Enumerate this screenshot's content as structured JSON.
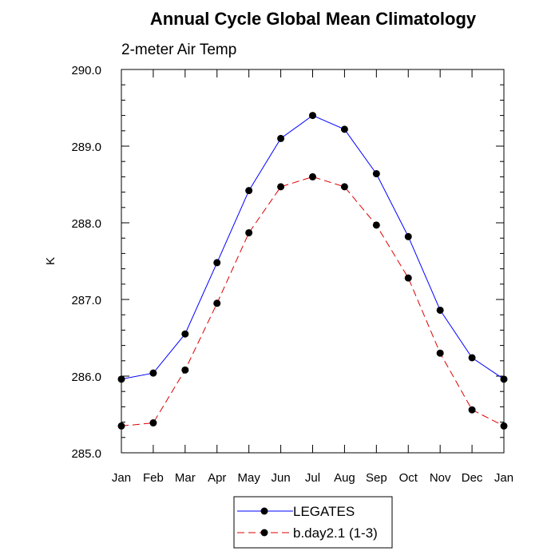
{
  "chart_data": {
    "type": "line",
    "title": "Annual Cycle Global Mean Climatology",
    "subtitle": "2-meter Air Temp",
    "xlabel": "",
    "ylabel": "K",
    "categories": [
      "Jan",
      "Feb",
      "Mar",
      "Apr",
      "May",
      "Jun",
      "Jul",
      "Aug",
      "Sep",
      "Oct",
      "Nov",
      "Dec",
      "Jan"
    ],
    "ylim": [
      285.0,
      290.0
    ],
    "yticks": [
      "285.0",
      "286.0",
      "287.0",
      "288.0",
      "289.0",
      "290.0"
    ],
    "grid": false,
    "legend_position": "bottom-center",
    "series": [
      {
        "name": "LEGATES",
        "color": "#0000ff",
        "line_style": "solid",
        "marker": "filled-circle",
        "values": [
          285.96,
          286.04,
          286.55,
          287.48,
          288.42,
          289.1,
          289.4,
          289.22,
          288.64,
          287.82,
          286.86,
          286.24,
          285.96
        ]
      },
      {
        "name": "b.day2.1 (1-3)",
        "color": "#dd0000",
        "line_style": "dashed",
        "marker": "filled-circle",
        "values": [
          285.35,
          285.39,
          286.08,
          286.95,
          287.87,
          288.47,
          288.6,
          288.47,
          287.97,
          287.28,
          286.3,
          285.56,
          285.35
        ]
      }
    ]
  }
}
